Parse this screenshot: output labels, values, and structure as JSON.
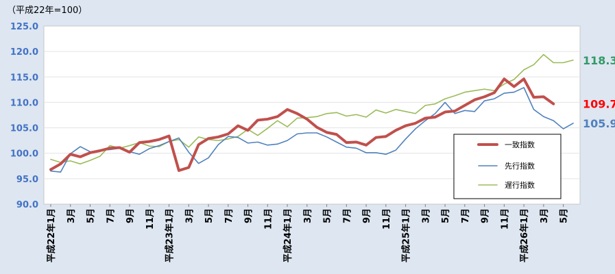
{
  "unit_note": "（平成22年=100）",
  "chart_data": {
    "type": "line",
    "ylim": [
      90,
      125
    ],
    "yticks": [
      "90.0",
      "95.0",
      "100.0",
      "105.0",
      "110.0",
      "115.0",
      "120.0",
      "125.0"
    ],
    "x_labels": [
      "平成22年1月",
      "3月",
      "5月",
      "7月",
      "9月",
      "11月",
      "平成23年1月",
      "3月",
      "5月",
      "7月",
      "9月",
      "11月",
      "平成24年1月",
      "3月",
      "5月",
      "7月",
      "9月",
      "11月",
      "平成25年1月",
      "3月",
      "5月",
      "7月",
      "9月",
      "11月",
      "平成26年1月",
      "3月",
      "5月"
    ],
    "legend": [
      "一致指数",
      "先行指数",
      "遅行指数"
    ],
    "series": [
      {
        "name": "一致指数",
        "color": "#c0504d",
        "end_label": "109.7",
        "end_label_color": "#ff0000",
        "values": [
          96.8,
          97.9,
          99.8,
          99.3,
          100.1,
          100.5,
          101.0,
          101.1,
          100.2,
          102.1,
          102.3,
          102.7,
          103.4,
          96.6,
          97.2,
          101.7,
          102.9,
          103.2,
          103.8,
          105.4,
          104.5,
          106.5,
          106.7,
          107.2,
          108.6,
          107.8,
          106.7,
          105.1,
          104.1,
          103.7,
          102.1,
          102.2,
          101.6,
          103.1,
          103.3,
          104.5,
          105.4,
          105.9,
          106.9,
          107.1,
          108.1,
          108.3,
          109.4,
          110.5,
          111.1,
          111.9,
          114.6,
          113.1,
          114.6,
          111.0,
          111.1,
          109.7
        ]
      },
      {
        "name": "先行指数",
        "color": "#4f81bd",
        "end_label": "105.9",
        "end_label_color": "#4f81bd",
        "values": [
          96.5,
          96.3,
          99.9,
          101.3,
          100.3,
          100.6,
          100.7,
          101.0,
          100.3,
          99.8,
          100.9,
          101.5,
          102.3,
          103.0,
          100.2,
          98.0,
          99.1,
          101.7,
          103.3,
          103.1,
          102.0,
          102.2,
          101.6,
          101.8,
          102.5,
          103.8,
          104.0,
          104.0,
          103.2,
          102.2,
          101.2,
          101.0,
          100.1,
          100.1,
          99.8,
          100.6,
          102.8,
          104.8,
          106.4,
          107.8,
          110.0,
          107.8,
          108.4,
          108.2,
          110.3,
          110.7,
          111.8,
          112.0,
          112.9,
          108.6,
          107.2,
          106.4,
          104.8,
          105.9
        ]
      },
      {
        "name": "遅行指数",
        "color": "#9bbb59",
        "end_label": "118.3",
        "end_label_color": "#339966",
        "values": [
          98.8,
          98.2,
          98.5,
          97.9,
          98.6,
          99.4,
          101.5,
          101.0,
          101.5,
          102.1,
          101.4,
          101.3,
          102.3,
          102.7,
          101.2,
          103.2,
          102.7,
          102.5,
          102.8,
          103.3,
          104.7,
          103.5,
          104.9,
          106.4,
          105.2,
          106.9,
          107.0,
          107.2,
          107.8,
          108.0,
          107.3,
          107.6,
          107.1,
          108.5,
          107.9,
          108.6,
          108.2,
          107.8,
          109.4,
          109.7,
          110.7,
          111.3,
          112.0,
          112.3,
          112.6,
          112.3,
          113.6,
          114.5,
          116.4,
          117.4,
          119.4,
          117.8,
          117.8,
          118.3
        ]
      }
    ]
  }
}
